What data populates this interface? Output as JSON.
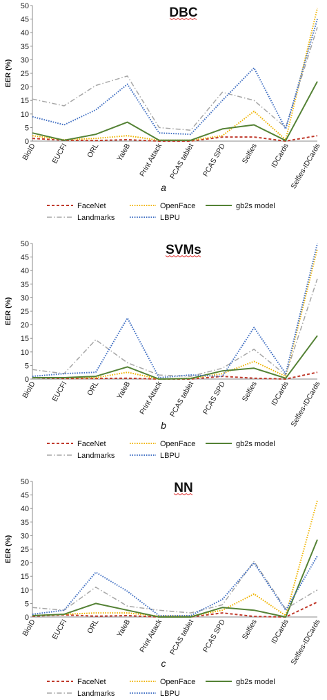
{
  "chart_data": [
    {
      "type": "line",
      "title": "DBC",
      "subtitle": "a",
      "ylabel": "EER (%)",
      "ylim": [
        0,
        50
      ],
      "yticks": [
        0,
        5,
        10,
        15,
        20,
        25,
        30,
        35,
        40,
        45,
        50
      ],
      "categories": [
        "BioID",
        "EUCFI",
        "ORL",
        "YaleB",
        "Print Attack",
        "PCAS tablet",
        "PCAS SPD",
        "Selfies",
        "IDCards",
        "Selfies-IDCards"
      ],
      "grid": false,
      "legend": "below",
      "series": [
        {
          "name": "FaceNet",
          "color": "#c0392b",
          "dash": "dashed",
          "values": [
            1.0,
            0.3,
            0.2,
            0.5,
            0.0,
            0.0,
            1.5,
            1.5,
            0.0,
            2.0
          ]
        },
        {
          "name": "OpenFace",
          "color": "#f0b400",
          "dash": "dotted",
          "values": [
            2.0,
            0.5,
            1.0,
            2.0,
            0.3,
            0.3,
            2.0,
            11.0,
            0.5,
            49.0
          ]
        },
        {
          "name": "gb2s model",
          "color": "#548235",
          "dash": "solid",
          "values": [
            3.0,
            0.3,
            2.5,
            7.0,
            0.3,
            0.3,
            4.5,
            6.0,
            0.2,
            22.0
          ]
        },
        {
          "name": "Landmarks",
          "color": "#a6a6a6",
          "dash": "dashdot",
          "values": [
            15.5,
            13.0,
            20.5,
            24.0,
            5.0,
            4.0,
            18.0,
            15.0,
            5.0,
            42.0
          ]
        },
        {
          "name": "LBPU",
          "color": "#4472c4",
          "dash": "dotted",
          "values": [
            9.0,
            6.0,
            11.5,
            21.0,
            3.0,
            2.5,
            15.0,
            27.0,
            4.5,
            45.0
          ]
        }
      ]
    },
    {
      "type": "line",
      "title": "SVMs",
      "subtitle": "b",
      "ylabel": "EER (%)",
      "ylim": [
        0,
        50
      ],
      "yticks": [
        0,
        5,
        10,
        15,
        20,
        25,
        30,
        35,
        40,
        45,
        50
      ],
      "categories": [
        "BioID",
        "EUCFI",
        "ORL",
        "YaleB",
        "Print Attack",
        "PCAS tablet",
        "PCAS SPD",
        "Selfies",
        "IDCards",
        "Selfies-IDCards"
      ],
      "grid": false,
      "legend": "below",
      "series": [
        {
          "name": "FaceNet",
          "color": "#c0392b",
          "dash": "dashed",
          "values": [
            0.5,
            0.2,
            0.2,
            0.3,
            0.0,
            0.0,
            1.0,
            0.3,
            0.0,
            2.5
          ]
        },
        {
          "name": "OpenFace",
          "color": "#f0b400",
          "dash": "dotted",
          "values": [
            0.5,
            0.5,
            0.5,
            2.5,
            0.0,
            0.3,
            2.0,
            6.5,
            1.0,
            48.0
          ]
        },
        {
          "name": "gb2s model",
          "color": "#548235",
          "dash": "solid",
          "values": [
            0.5,
            0.5,
            1.0,
            4.5,
            0.0,
            0.2,
            3.0,
            4.0,
            0.3,
            16.0
          ]
        },
        {
          "name": "Landmarks",
          "color": "#a6a6a6",
          "dash": "dashdot",
          "values": [
            3.5,
            2.0,
            14.5,
            6.0,
            1.5,
            1.0,
            4.0,
            11.0,
            1.5,
            37.0
          ]
        },
        {
          "name": "LBPU",
          "color": "#4472c4",
          "dash": "dotted",
          "values": [
            1.0,
            2.0,
            2.5,
            22.5,
            0.5,
            1.5,
            1.0,
            19.0,
            2.0,
            50.0
          ]
        }
      ]
    },
    {
      "type": "line",
      "title": "NN",
      "subtitle": "c",
      "ylabel": "EER (%)",
      "ylim": [
        0,
        50
      ],
      "yticks": [
        0,
        5,
        10,
        15,
        20,
        25,
        30,
        35,
        40,
        45,
        50
      ],
      "categories": [
        "BioID",
        "EUCFI",
        "ORL",
        "YaleB",
        "Print Attack",
        "PCAS tablet",
        "PCAS SPD",
        "Selfies",
        "IDCards",
        "Selfies-IDCards"
      ],
      "grid": false,
      "legend": "below",
      "series": [
        {
          "name": "FaceNet",
          "color": "#c0392b",
          "dash": "dashed",
          "values": [
            0.3,
            0.8,
            0.3,
            0.5,
            0.0,
            0.0,
            1.5,
            0.2,
            0.0,
            5.5
          ]
        },
        {
          "name": "OpenFace",
          "color": "#f0b400",
          "dash": "dotted",
          "values": [
            0.5,
            1.0,
            1.5,
            1.5,
            0.3,
            0.3,
            2.5,
            8.5,
            0.5,
            43.0
          ]
        },
        {
          "name": "gb2s model",
          "color": "#548235",
          "dash": "solid",
          "values": [
            0.5,
            1.0,
            5.0,
            2.5,
            0.0,
            0.0,
            3.5,
            2.5,
            0.0,
            28.5
          ]
        },
        {
          "name": "Landmarks",
          "color": "#a6a6a6",
          "dash": "dashdot",
          "values": [
            3.5,
            2.5,
            11.0,
            4.0,
            2.5,
            1.5,
            4.5,
            20.5,
            3.0,
            10.0
          ]
        },
        {
          "name": "LBPU",
          "color": "#4472c4",
          "dash": "dotted",
          "values": [
            1.0,
            2.5,
            16.5,
            9.5,
            0.5,
            0.5,
            6.5,
            20.0,
            2.5,
            22.5
          ]
        }
      ]
    }
  ]
}
